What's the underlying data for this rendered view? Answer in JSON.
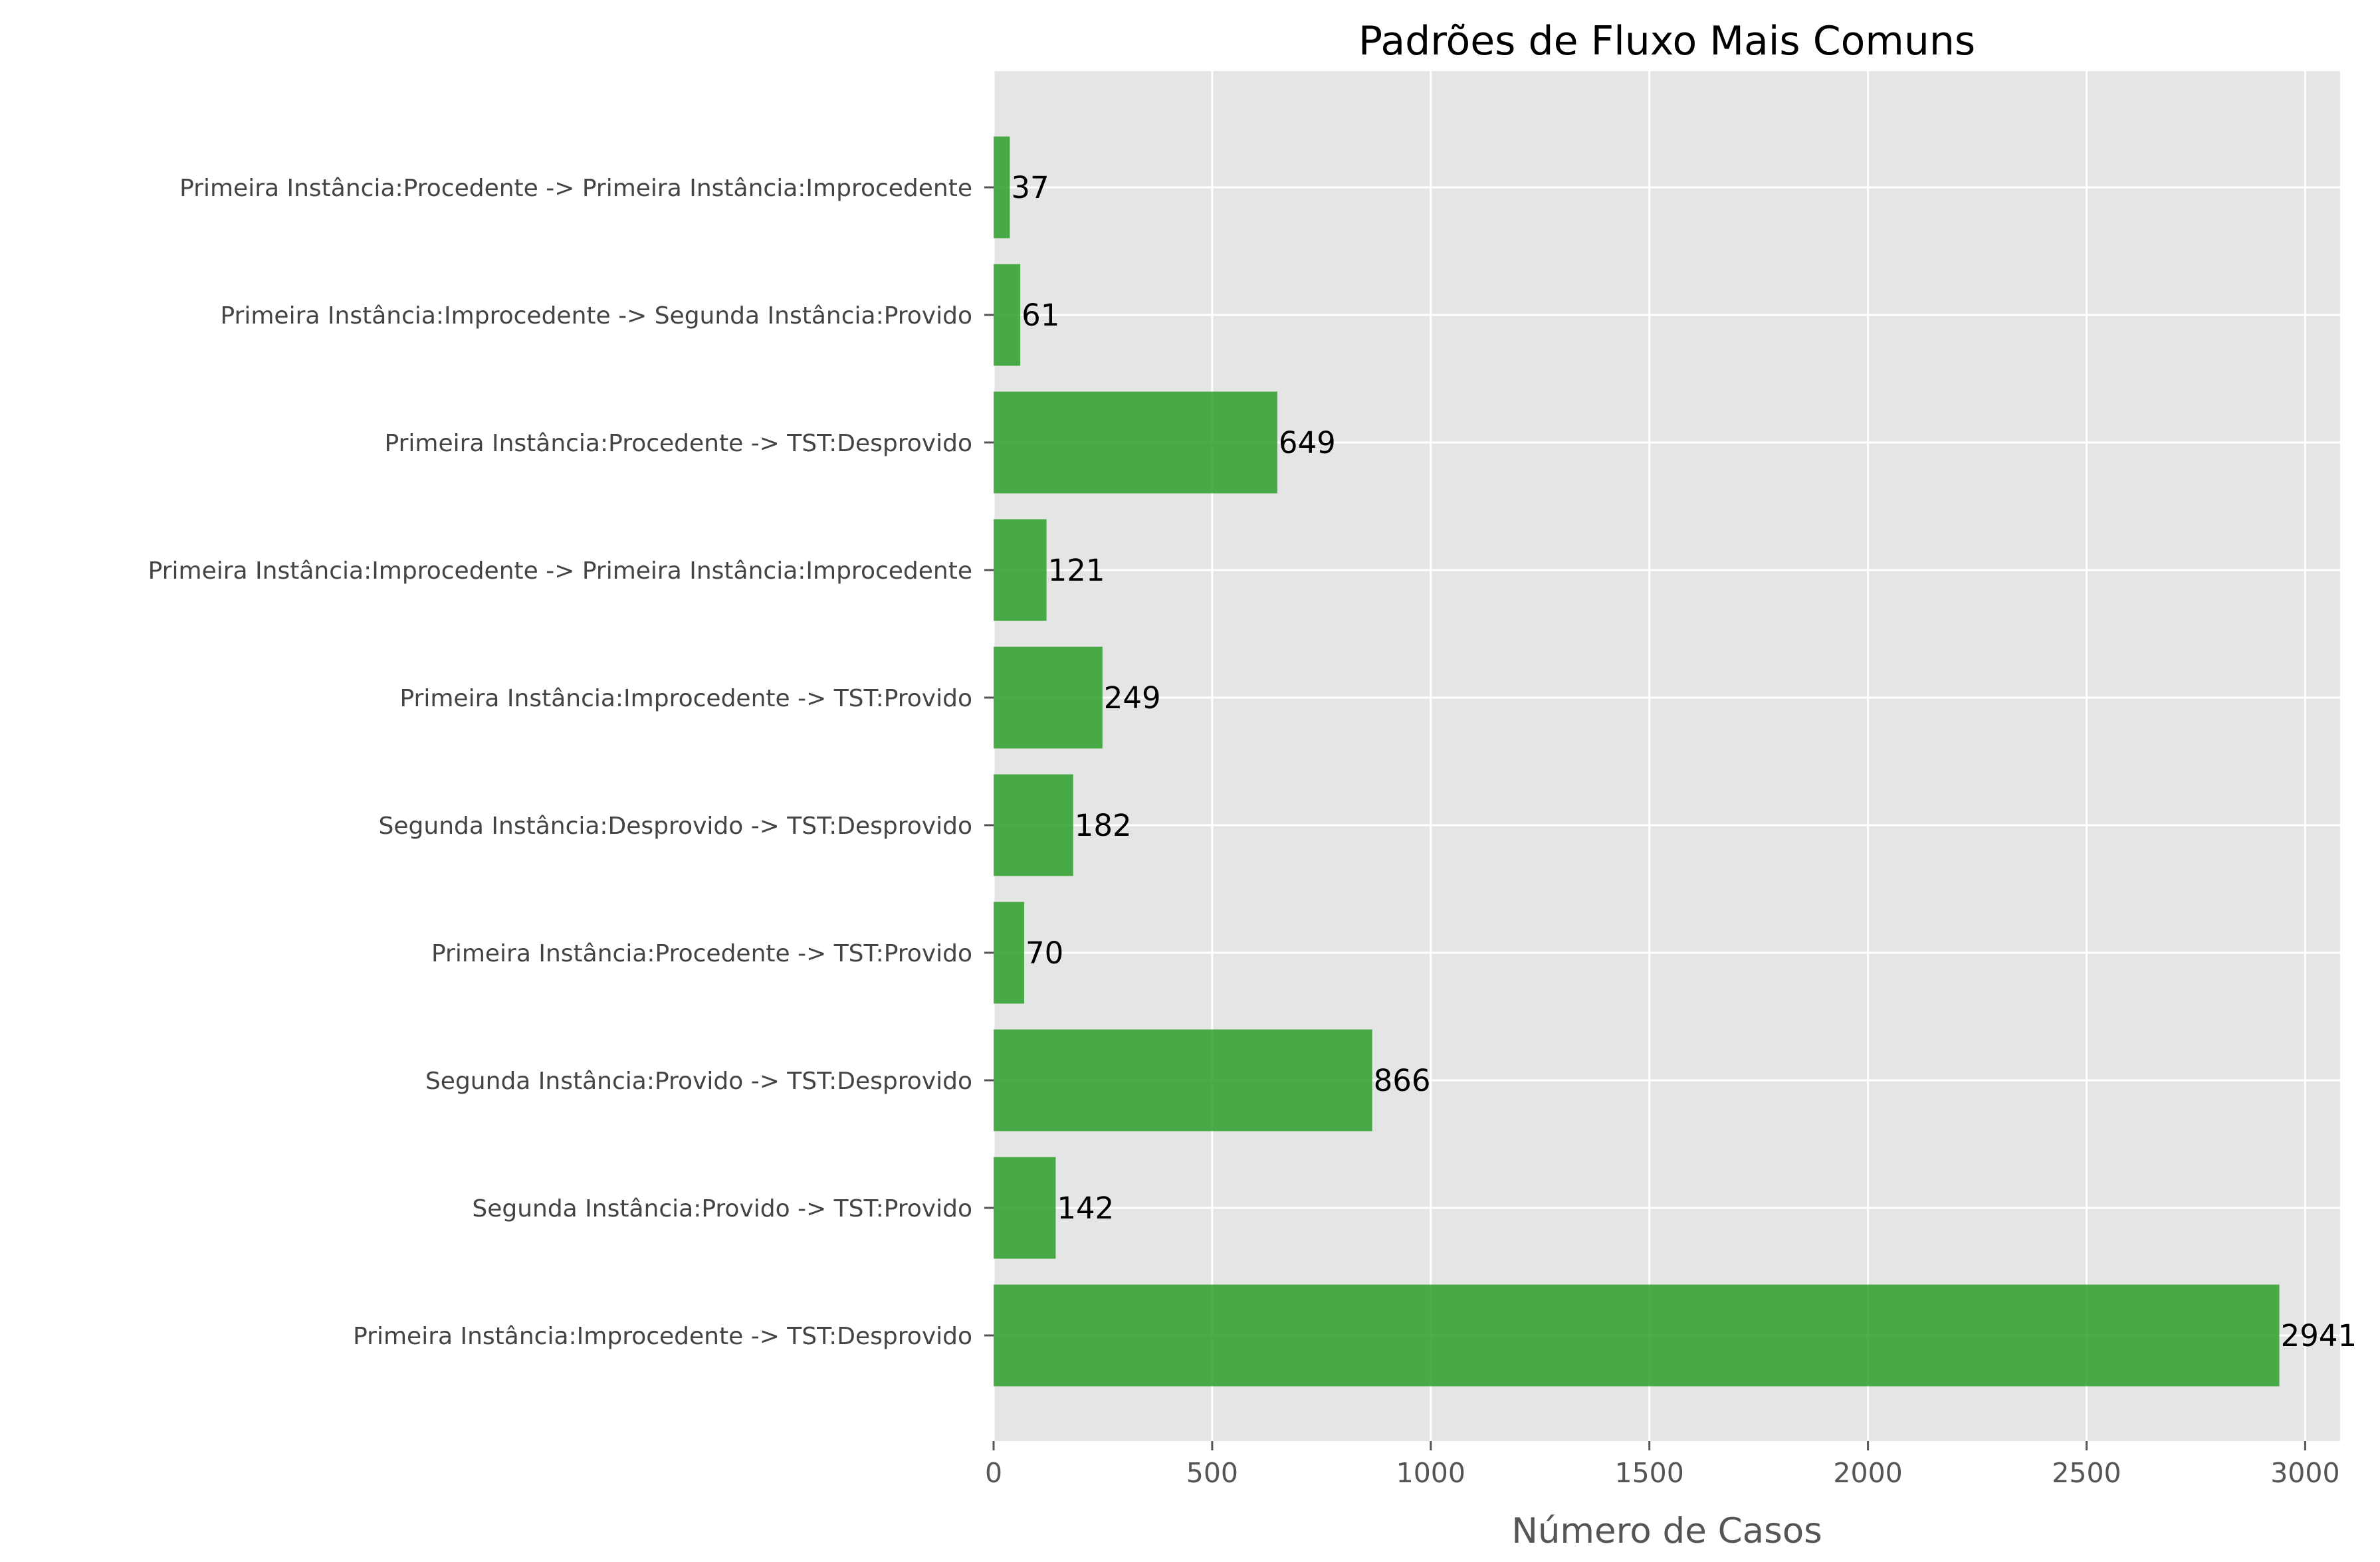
{
  "chart_data": {
    "type": "bar",
    "orientation": "horizontal",
    "title": "Padrões de Fluxo Mais Comuns",
    "xlabel": "Número de Casos",
    "ylabel": "",
    "xlim": [
      0,
      3080
    ],
    "xticks": [
      0,
      500,
      1000,
      1500,
      2000,
      2500,
      3000
    ],
    "grid": true,
    "legend": "none",
    "bar_color": "#2ca02c",
    "categories": [
      "Primeira Instância:Procedente -> Primeira Instância:Improcedente",
      "Primeira Instância:Improcedente -> Segunda Instância:Provido",
      "Primeira Instância:Procedente -> TST:Desprovido",
      "Primeira Instância:Improcedente -> Primeira Instância:Improcedente",
      "Primeira Instância:Improcedente -> TST:Provido",
      "Segunda Instância:Desprovido -> TST:Desprovido",
      "Primeira Instância:Procedente -> TST:Provido",
      "Segunda Instância:Provido -> TST:Desprovido",
      "Segunda Instância:Provido -> TST:Provido",
      "Primeira Instância:Improcedente -> TST:Desprovido"
    ],
    "values": [
      37,
      61,
      649,
      121,
      249,
      182,
      70,
      866,
      142,
      2941
    ]
  }
}
